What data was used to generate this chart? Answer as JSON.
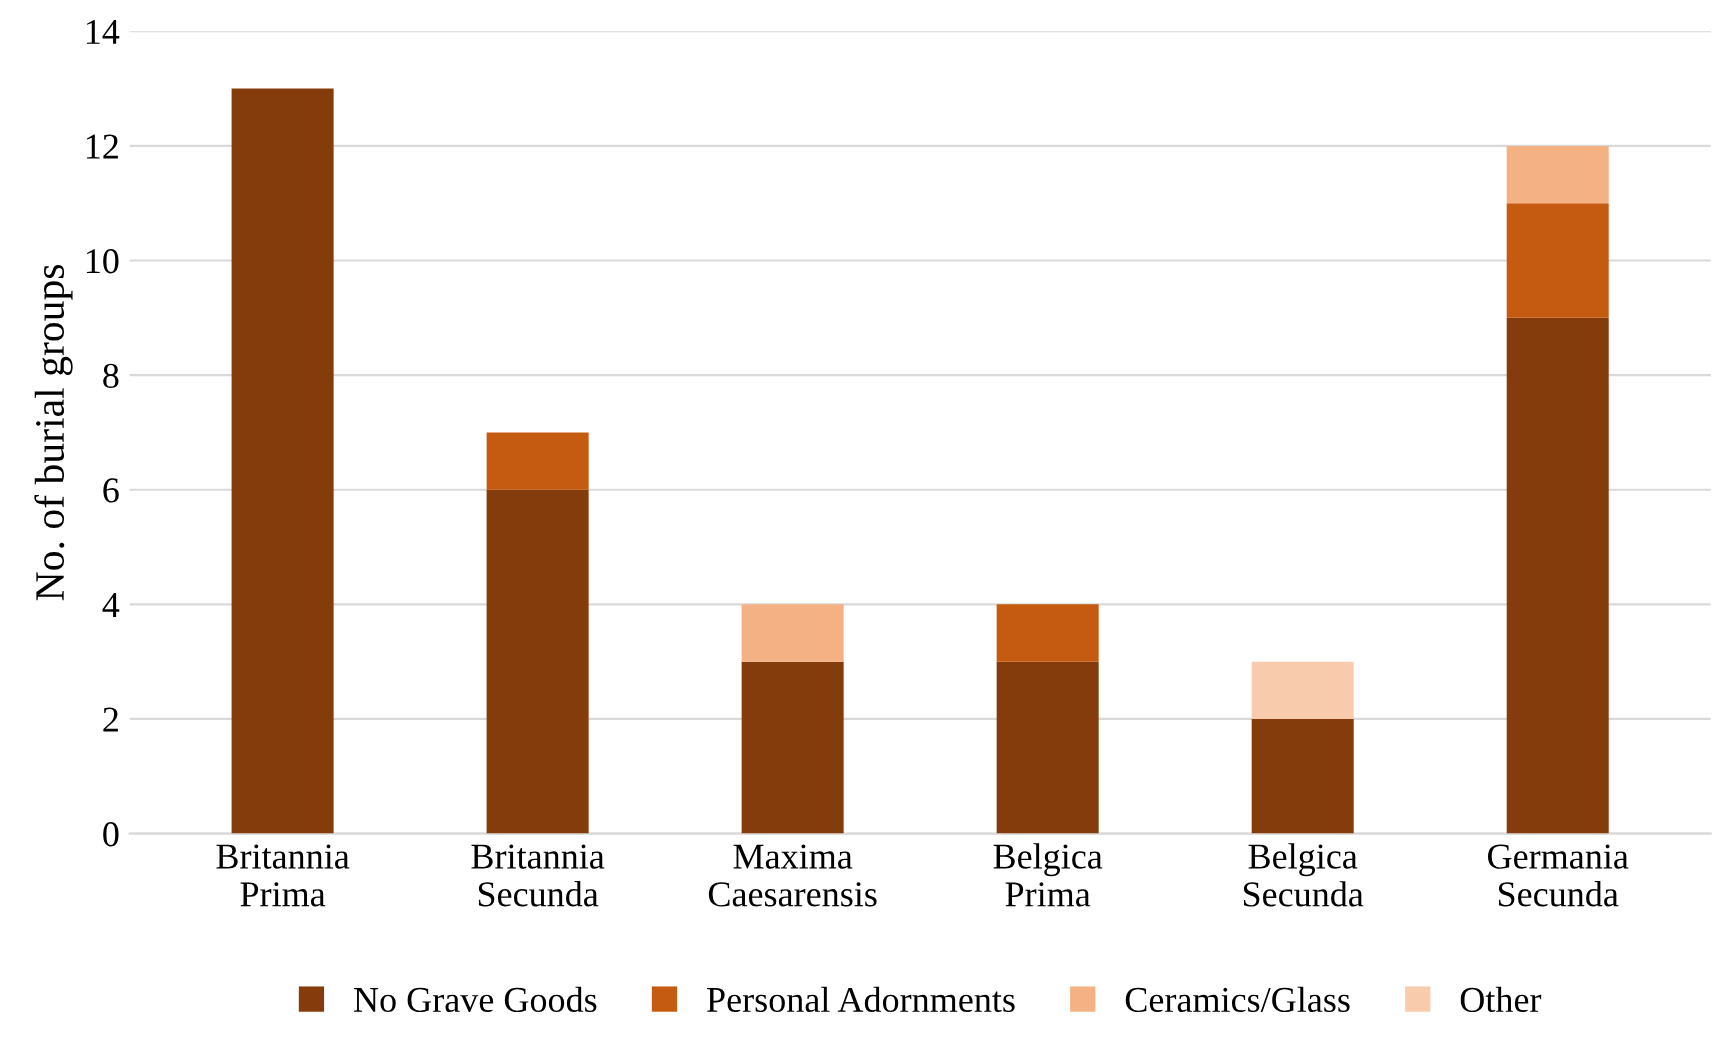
{
  "chart_data": {
    "type": "bar",
    "stacked": true,
    "ylabel": "No. of burial groups",
    "categories": [
      "Britannia\nPrima",
      "Britannia\nSecunda",
      "Maxima\nCaesarensis",
      "Belgica\nPrima",
      "Belgica\nSecunda",
      "Germania\nSecunda"
    ],
    "series": [
      {
        "name": "No Grave Goods",
        "color": "#843c0c",
        "values": [
          13,
          6,
          3,
          3,
          2,
          9
        ]
      },
      {
        "name": "Personal Adornments",
        "color": "#c55a11",
        "values": [
          0,
          1,
          0,
          1,
          0,
          2
        ]
      },
      {
        "name": "Ceramics/Glass",
        "color": "#f4b183",
        "values": [
          0,
          0,
          1,
          0,
          0,
          1
        ]
      },
      {
        "name": "Other",
        "color": "#f8cbad",
        "values": [
          0,
          0,
          0,
          0,
          1,
          0
        ]
      }
    ],
    "ylim": [
      0,
      14
    ],
    "yticks": [
      0,
      2,
      4,
      6,
      8,
      10,
      12,
      14
    ],
    "grid": "y",
    "legend": "bottom"
  }
}
